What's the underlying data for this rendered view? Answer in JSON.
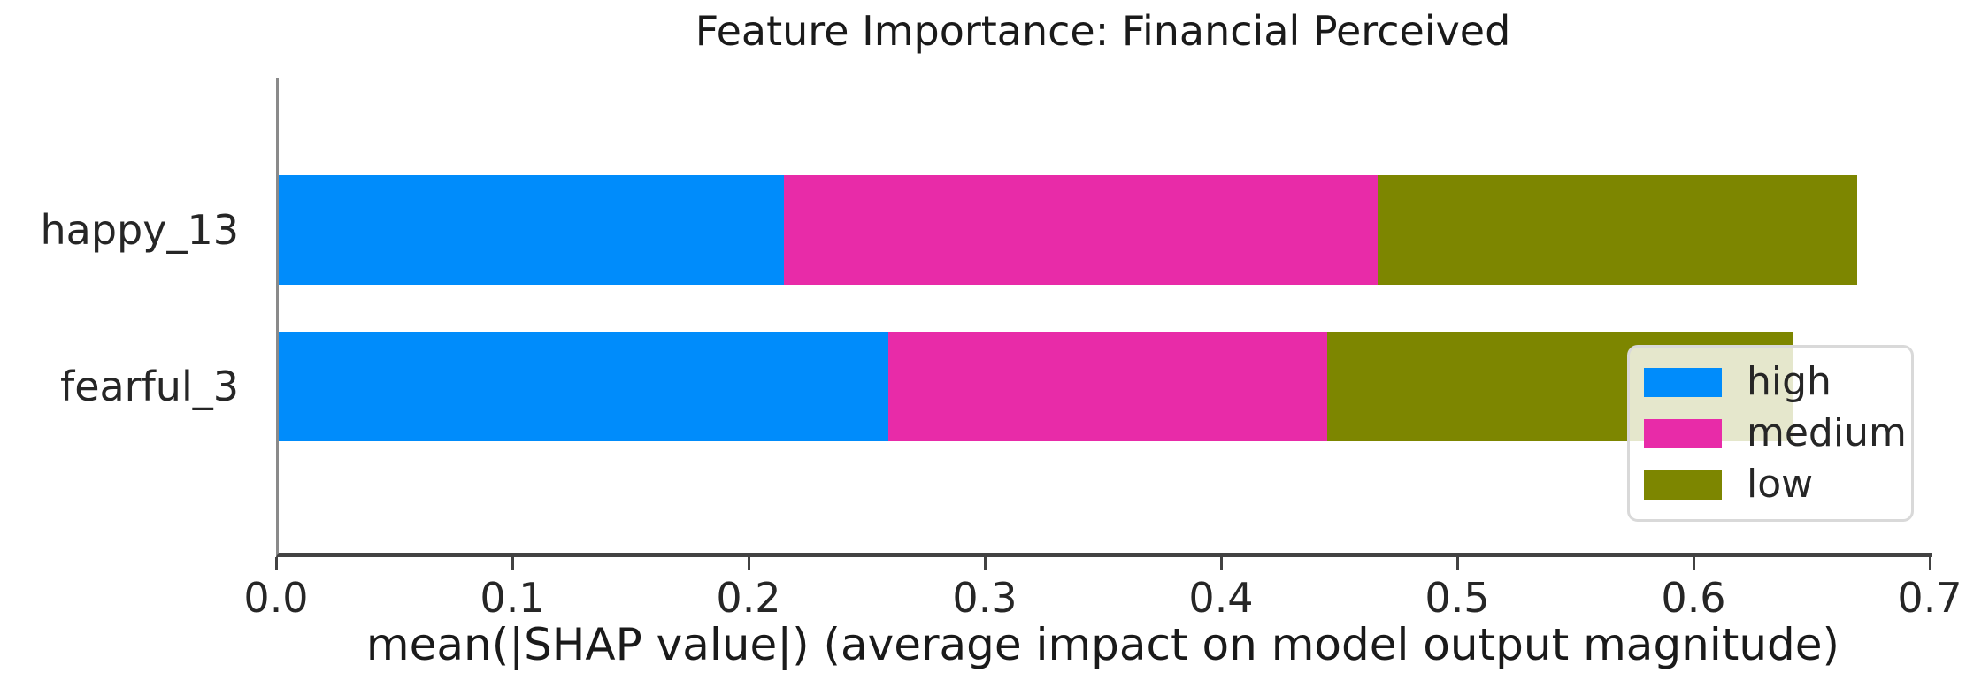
{
  "chart_data": {
    "type": "bar",
    "orientation": "horizontal-stacked",
    "title": "Feature Importance: Financial Perceived",
    "xlabel": "mean(|SHAP value|) (average impact on model output magnitude)",
    "ylabel": "",
    "categories": [
      "happy_13",
      "fearful_3"
    ],
    "series": [
      {
        "name": "high",
        "color": "#008cfb",
        "values": [
          0.214,
          0.258
        ]
      },
      {
        "name": "medium",
        "color": "#e82ba8",
        "values": [
          0.251,
          0.186
        ]
      },
      {
        "name": "low",
        "color": "#7d8600",
        "values": [
          0.203,
          0.197
        ]
      }
    ],
    "totals": [
      0.668,
      0.641
    ],
    "xlim": [
      0,
      0.7
    ],
    "xticks": [
      "0.0",
      "0.1",
      "0.2",
      "0.3",
      "0.4",
      "0.5",
      "0.6",
      "0.7"
    ],
    "grid": false,
    "legend": {
      "position": "right-inside",
      "entries": [
        "high",
        "medium",
        "low"
      ]
    },
    "colors": {
      "axis_spine": "#424242",
      "text": "#262626"
    }
  }
}
